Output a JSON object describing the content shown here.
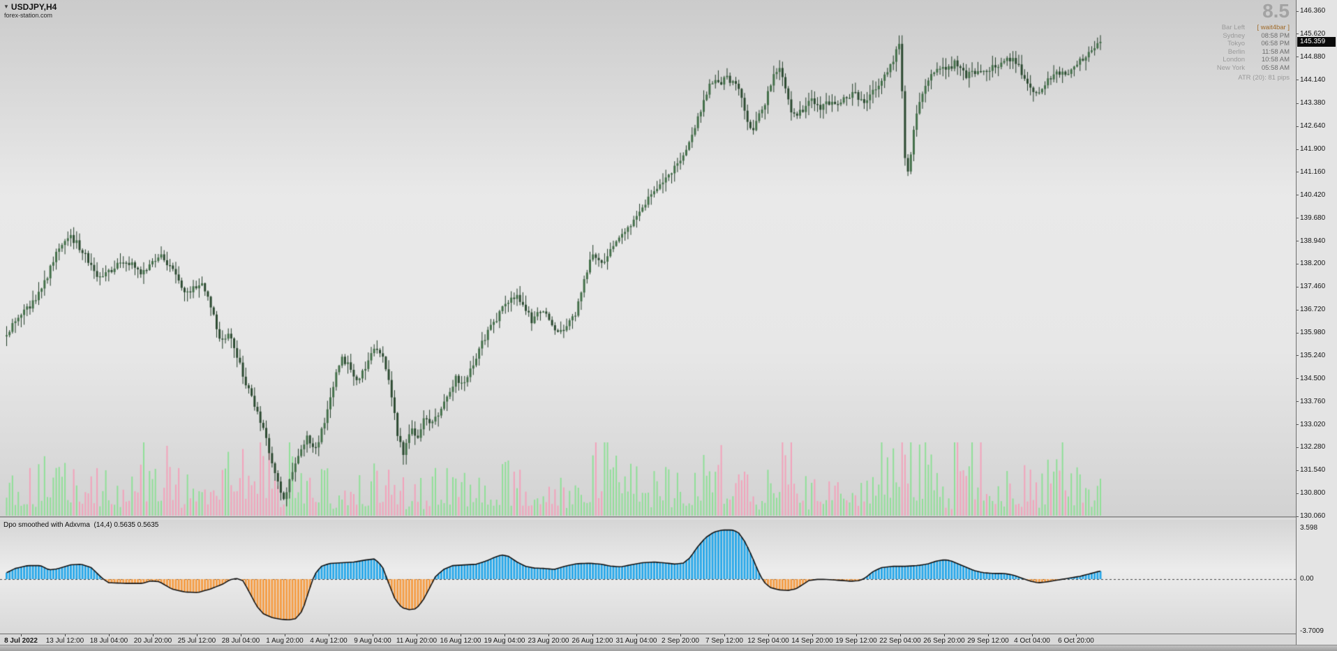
{
  "window": {
    "symbol": "USDJPY,H4",
    "watermark": "forex-station.com",
    "dropdown_icon": "▼"
  },
  "spread_badge": "8.5",
  "clock_panel": {
    "accent_color": "#a06a28",
    "rows": [
      {
        "label": "Bar Left",
        "value": "[ wait4bar ]"
      },
      {
        "label": "Sydney",
        "value": "08:58 PM"
      },
      {
        "label": "Tokyo",
        "value": "06:58 PM"
      },
      {
        "label": "Berlin",
        "value": "11:58 AM"
      },
      {
        "label": "London",
        "value": "10:58 AM"
      },
      {
        "label": "New York",
        "value": "05:58 AM"
      }
    ],
    "atr": "ATR (20): 81 pips"
  },
  "price_axis": {
    "labels": [
      "146.360",
      "145.620",
      "144.880",
      "144.140",
      "143.380",
      "142.640",
      "141.900",
      "141.160",
      "140.420",
      "139.680",
      "138.940",
      "138.200",
      "137.460",
      "136.720",
      "135.980",
      "135.240",
      "134.500",
      "133.760",
      "133.020",
      "132.280",
      "131.540",
      "130.800",
      "130.060"
    ],
    "current_price": "145.359"
  },
  "time_axis": {
    "labels": [
      "8 Jul 2022",
      "13 Jul 12:00",
      "18 Jul 04:00",
      "20 Jul 20:00",
      "25 Jul 12:00",
      "28 Jul 04:00",
      "1 Aug 20:00",
      "4 Aug 12:00",
      "9 Aug 04:00",
      "11 Aug 20:00",
      "16 Aug 12:00",
      "19 Aug 04:00",
      "23 Aug 20:00",
      "26 Aug 12:00",
      "31 Aug 04:00",
      "2 Sep 20:00",
      "7 Sep 12:00",
      "12 Sep 04:00",
      "14 Sep 20:00",
      "19 Sep 12:00",
      "22 Sep 04:00",
      "26 Sep 20:00",
      "29 Sep 12:00",
      "4 Oct 04:00",
      "6 Oct 20:00"
    ]
  },
  "indicator_panel": {
    "title": "Dpo smoothed with Adxvma  (14,4) 0.5635 0.5635",
    "axis_max": "3.598",
    "axis_zero": "0.00",
    "axis_min": "-3.7009"
  },
  "chart_data": {
    "type": "candlestick",
    "symbol": "USDJPY",
    "timeframe": "H4",
    "bars": 376,
    "visible_range": {
      "price_top": 146.36,
      "price_bottom": 130.06,
      "first_label": "8 Jul 2022",
      "last_label": "6 Oct 20:00"
    },
    "price_path": [
      [
        0,
        136.0
      ],
      [
        15,
        136.5
      ],
      [
        30,
        136.9
      ],
      [
        45,
        137.6
      ],
      [
        60,
        138.7
      ],
      [
        75,
        139.05
      ],
      [
        85,
        138.8
      ],
      [
        95,
        138.35
      ],
      [
        110,
        137.7
      ],
      [
        122,
        137.95
      ],
      [
        135,
        138.3
      ],
      [
        148,
        138.15
      ],
      [
        160,
        137.9
      ],
      [
        172,
        138.25
      ],
      [
        185,
        138.45
      ],
      [
        198,
        137.9
      ],
      [
        210,
        137.3
      ],
      [
        222,
        137.45
      ],
      [
        232,
        137.5
      ],
      [
        242,
        136.7
      ],
      [
        252,
        135.7
      ],
      [
        262,
        135.95
      ],
      [
        272,
        135.2
      ],
      [
        282,
        134.3
      ],
      [
        292,
        133.7
      ],
      [
        302,
        132.9
      ],
      [
        312,
        131.9
      ],
      [
        322,
        130.9
      ],
      [
        328,
        130.55
      ],
      [
        335,
        131.3
      ],
      [
        345,
        132.1
      ],
      [
        355,
        132.6
      ],
      [
        365,
        132.25
      ],
      [
        375,
        133.1
      ],
      [
        385,
        134.3
      ],
      [
        395,
        135.2
      ],
      [
        405,
        134.85
      ],
      [
        415,
        134.45
      ],
      [
        425,
        135.0
      ],
      [
        435,
        135.45
      ],
      [
        445,
        135.15
      ],
      [
        453,
        134.1
      ],
      [
        461,
        132.7
      ],
      [
        468,
        132.1
      ],
      [
        476,
        132.95
      ],
      [
        484,
        132.5
      ],
      [
        492,
        133.2
      ],
      [
        500,
        133.05
      ],
      [
        510,
        133.45
      ],
      [
        520,
        134.05
      ],
      [
        530,
        134.5
      ],
      [
        540,
        134.35
      ],
      [
        550,
        135.0
      ],
      [
        560,
        135.65
      ],
      [
        570,
        136.15
      ],
      [
        580,
        136.55
      ],
      [
        590,
        136.95
      ],
      [
        600,
        137.2
      ],
      [
        610,
        136.8
      ],
      [
        620,
        136.35
      ],
      [
        630,
        136.75
      ],
      [
        640,
        136.45
      ],
      [
        650,
        135.95
      ],
      [
        660,
        136.25
      ],
      [
        670,
        136.55
      ],
      [
        680,
        137.5
      ],
      [
        688,
        138.35
      ],
      [
        696,
        138.5
      ],
      [
        704,
        138.25
      ],
      [
        712,
        138.6
      ],
      [
        720,
        138.95
      ],
      [
        728,
        139.3
      ],
      [
        736,
        139.5
      ],
      [
        744,
        139.85
      ],
      [
        752,
        140.15
      ],
      [
        760,
        140.35
      ],
      [
        768,
        140.6
      ],
      [
        776,
        140.95
      ],
      [
        784,
        141.2
      ],
      [
        792,
        141.45
      ],
      [
        800,
        141.85
      ],
      [
        808,
        142.4
      ],
      [
        816,
        143.0
      ],
      [
        824,
        143.6
      ],
      [
        832,
        144.15
      ],
      [
        840,
        143.95
      ],
      [
        848,
        144.25
      ],
      [
        856,
        144.1
      ],
      [
        864,
        143.8
      ],
      [
        872,
        142.95
      ],
      [
        880,
        142.55
      ],
      [
        888,
        143.0
      ],
      [
        896,
        143.5
      ],
      [
        904,
        144.3
      ],
      [
        912,
        144.5
      ],
      [
        920,
        143.7
      ],
      [
        928,
        142.95
      ],
      [
        936,
        143.1
      ],
      [
        944,
        143.35
      ],
      [
        952,
        143.5
      ],
      [
        960,
        143.2
      ],
      [
        968,
        143.4
      ],
      [
        976,
        143.3
      ],
      [
        984,
        143.45
      ],
      [
        992,
        143.55
      ],
      [
        1000,
        143.7
      ],
      [
        1008,
        143.45
      ],
      [
        1016,
        143.55
      ],
      [
        1024,
        143.85
      ],
      [
        1032,
        144.1
      ],
      [
        1040,
        144.45
      ],
      [
        1048,
        144.85
      ],
      [
        1052,
        145.55
      ],
      [
        1055,
        144.6
      ],
      [
        1058,
        142.5
      ],
      [
        1061,
        140.9
      ],
      [
        1064,
        141.3
      ],
      [
        1068,
        142.2
      ],
      [
        1072,
        142.9
      ],
      [
        1078,
        143.5
      ],
      [
        1084,
        143.9
      ],
      [
        1090,
        144.3
      ],
      [
        1096,
        144.55
      ],
      [
        1102,
        144.6
      ],
      [
        1108,
        144.45
      ],
      [
        1114,
        144.6
      ],
      [
        1120,
        144.7
      ],
      [
        1126,
        144.4
      ],
      [
        1132,
        144.25
      ],
      [
        1138,
        144.5
      ],
      [
        1144,
        144.4
      ],
      [
        1150,
        144.5
      ],
      [
        1156,
        144.4
      ],
      [
        1162,
        144.6
      ],
      [
        1168,
        144.5
      ],
      [
        1174,
        144.65
      ],
      [
        1180,
        144.75
      ],
      [
        1186,
        144.9
      ],
      [
        1192,
        144.7
      ],
      [
        1198,
        144.3
      ],
      [
        1204,
        143.95
      ],
      [
        1210,
        143.75
      ],
      [
        1216,
        143.65
      ],
      [
        1222,
        143.9
      ],
      [
        1228,
        144.1
      ],
      [
        1234,
        144.35
      ],
      [
        1240,
        144.3
      ],
      [
        1246,
        144.45
      ],
      [
        1252,
        144.3
      ],
      [
        1258,
        144.55
      ],
      [
        1264,
        144.7
      ],
      [
        1270,
        144.85
      ],
      [
        1276,
        144.95
      ],
      [
        1282,
        145.1
      ],
      [
        1290,
        145.35
      ]
    ],
    "volume_clusters": [
      [
        35,
        75,
        0.8
      ],
      [
        150,
        205,
        0.9
      ],
      [
        255,
        312,
        1.0
      ],
      [
        330,
        365,
        0.7
      ],
      [
        415,
        455,
        0.6
      ],
      [
        555,
        600,
        0.5
      ],
      [
        675,
        725,
        0.9
      ],
      [
        820,
        880,
        0.8
      ],
      [
        900,
        940,
        1.1
      ],
      [
        1025,
        1100,
        1.2
      ],
      [
        1115,
        1170,
        0.8
      ],
      [
        1225,
        1265,
        0.5
      ]
    ],
    "oscillator": {
      "type": "histogram-area",
      "name": "DPO smoothed with ADXVMA",
      "params": [
        14,
        4
      ],
      "last_values": [
        0.5635,
        0.5635
      ],
      "scale_max": 3.598,
      "scale_min": -3.7009,
      "zero": 0,
      "path": [
        [
          0,
          0.45
        ],
        [
          10,
          0.75
        ],
        [
          25,
          0.95
        ],
        [
          40,
          0.95
        ],
        [
          50,
          0.65
        ],
        [
          60,
          0.72
        ],
        [
          75,
          1.0
        ],
        [
          88,
          1.05
        ],
        [
          100,
          0.8
        ],
        [
          112,
          0.1
        ],
        [
          120,
          -0.25
        ],
        [
          140,
          -0.3
        ],
        [
          160,
          -0.3
        ],
        [
          170,
          -0.12
        ],
        [
          180,
          -0.18
        ],
        [
          195,
          -0.7
        ],
        [
          210,
          -0.9
        ],
        [
          225,
          -0.95
        ],
        [
          240,
          -0.7
        ],
        [
          255,
          -0.35
        ],
        [
          263,
          -0.05
        ],
        [
          271,
          0.05
        ],
        [
          279,
          -0.12
        ],
        [
          287,
          -1.0
        ],
        [
          295,
          -1.9
        ],
        [
          303,
          -2.45
        ],
        [
          313,
          -2.7
        ],
        [
          323,
          -2.82
        ],
        [
          333,
          -2.86
        ],
        [
          341,
          -2.78
        ],
        [
          349,
          -2.2
        ],
        [
          356,
          -0.9
        ],
        [
          363,
          0.3
        ],
        [
          371,
          0.9
        ],
        [
          381,
          1.1
        ],
        [
          395,
          1.15
        ],
        [
          410,
          1.2
        ],
        [
          424,
          1.35
        ],
        [
          434,
          1.42
        ],
        [
          443,
          0.9
        ],
        [
          450,
          -0.2
        ],
        [
          458,
          -1.4
        ],
        [
          466,
          -2.0
        ],
        [
          475,
          -2.15
        ],
        [
          483,
          -2.08
        ],
        [
          491,
          -1.5
        ],
        [
          499,
          -0.6
        ],
        [
          506,
          0.2
        ],
        [
          516,
          0.7
        ],
        [
          526,
          0.95
        ],
        [
          540,
          1.0
        ],
        [
          554,
          1.05
        ],
        [
          566,
          1.28
        ],
        [
          576,
          1.55
        ],
        [
          584,
          1.7
        ],
        [
          592,
          1.6
        ],
        [
          602,
          1.2
        ],
        [
          612,
          0.9
        ],
        [
          622,
          0.78
        ],
        [
          634,
          0.75
        ],
        [
          646,
          0.68
        ],
        [
          658,
          0.9
        ],
        [
          672,
          1.08
        ],
        [
          686,
          1.12
        ],
        [
          700,
          1.06
        ],
        [
          712,
          0.92
        ],
        [
          724,
          0.86
        ],
        [
          736,
          1.0
        ],
        [
          750,
          1.15
        ],
        [
          764,
          1.2
        ],
        [
          776,
          1.14
        ],
        [
          788,
          1.06
        ],
        [
          798,
          1.12
        ],
        [
          806,
          1.5
        ],
        [
          814,
          2.2
        ],
        [
          824,
          2.9
        ],
        [
          834,
          3.3
        ],
        [
          844,
          3.45
        ],
        [
          856,
          3.45
        ],
        [
          863,
          3.28
        ],
        [
          871,
          2.6
        ],
        [
          879,
          1.6
        ],
        [
          886,
          0.6
        ],
        [
          893,
          -0.2
        ],
        [
          901,
          -0.6
        ],
        [
          911,
          -0.75
        ],
        [
          921,
          -0.8
        ],
        [
          931,
          -0.68
        ],
        [
          939,
          -0.38
        ],
        [
          946,
          -0.1
        ],
        [
          956,
          -0.02
        ],
        [
          966,
          -0.02
        ],
        [
          976,
          -0.06
        ],
        [
          986,
          -0.1
        ],
        [
          996,
          -0.15
        ],
        [
          1006,
          -0.1
        ],
        [
          1013,
          0.1
        ],
        [
          1021,
          0.5
        ],
        [
          1031,
          0.8
        ],
        [
          1045,
          0.9
        ],
        [
          1060,
          0.9
        ],
        [
          1075,
          0.96
        ],
        [
          1086,
          1.06
        ],
        [
          1096,
          1.26
        ],
        [
          1106,
          1.36
        ],
        [
          1113,
          1.3
        ],
        [
          1121,
          1.1
        ],
        [
          1131,
          0.85
        ],
        [
          1141,
          0.6
        ],
        [
          1151,
          0.46
        ],
        [
          1163,
          0.4
        ],
        [
          1176,
          0.4
        ],
        [
          1186,
          0.3
        ],
        [
          1196,
          0.1
        ],
        [
          1206,
          -0.12
        ],
        [
          1216,
          -0.26
        ],
        [
          1226,
          -0.2
        ],
        [
          1236,
          -0.1
        ],
        [
          1246,
          0.0
        ],
        [
          1256,
          0.1
        ],
        [
          1266,
          0.2
        ],
        [
          1276,
          0.35
        ],
        [
          1285,
          0.5
        ],
        [
          1290,
          0.5635
        ]
      ]
    },
    "colors": {
      "candle_up": "#44704a",
      "candle_down": "#2c4a31",
      "wick": "#1e3a24",
      "volume_up": "#8fdf97",
      "volume_down": "#f2a2ba",
      "osc_positive": "#29a8e9",
      "osc_negative": "#f59d45",
      "osc_outline": "#121212",
      "zero_line": "#454545",
      "price_badge_bg": "#0b0b0b",
      "price_badge_text": "#ffffff"
    }
  }
}
